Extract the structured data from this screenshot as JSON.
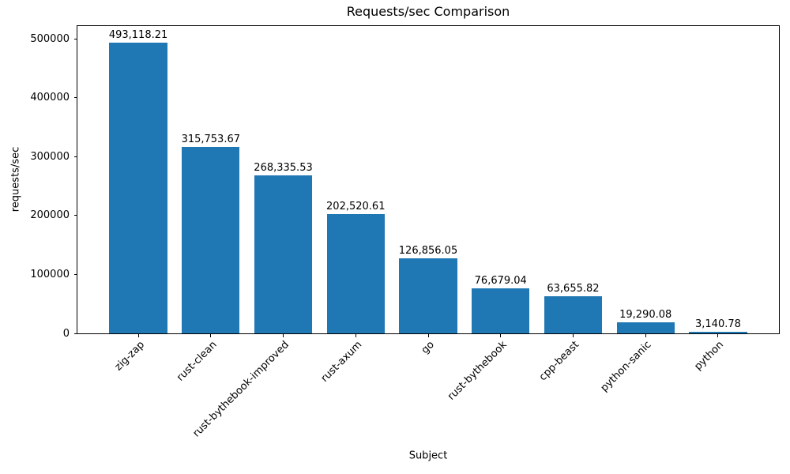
{
  "chart_data": {
    "type": "bar",
    "title": "Requests/sec Comparison",
    "xlabel": "Subject",
    "ylabel": "requests/sec",
    "categories": [
      "zig-zap",
      "rust-clean",
      "rust-bythebook-improved",
      "rust-axum",
      "go",
      "rust-bythebook",
      "cpp-beast",
      "python-sanic",
      "python"
    ],
    "values": [
      493118.21,
      315753.67,
      268335.53,
      202520.61,
      126856.05,
      76679.04,
      63655.82,
      19290.08,
      3140.78
    ],
    "value_labels": [
      "493,118.21",
      "315,753.67",
      "268,335.53",
      "202,520.61",
      "126,856.05",
      "76,679.04",
      "63,655.82",
      "19,290.08",
      "3,140.78"
    ],
    "yticks": [
      0,
      100000,
      200000,
      300000,
      400000,
      500000
    ],
    "ytick_labels": [
      "0",
      "100000",
      "200000",
      "300000",
      "400000",
      "500000"
    ],
    "ylim": [
      0,
      521448
    ],
    "bar_color": "#1f77b4",
    "grid": false,
    "legend_position": "none",
    "x_tick_rotation_deg": 45
  }
}
